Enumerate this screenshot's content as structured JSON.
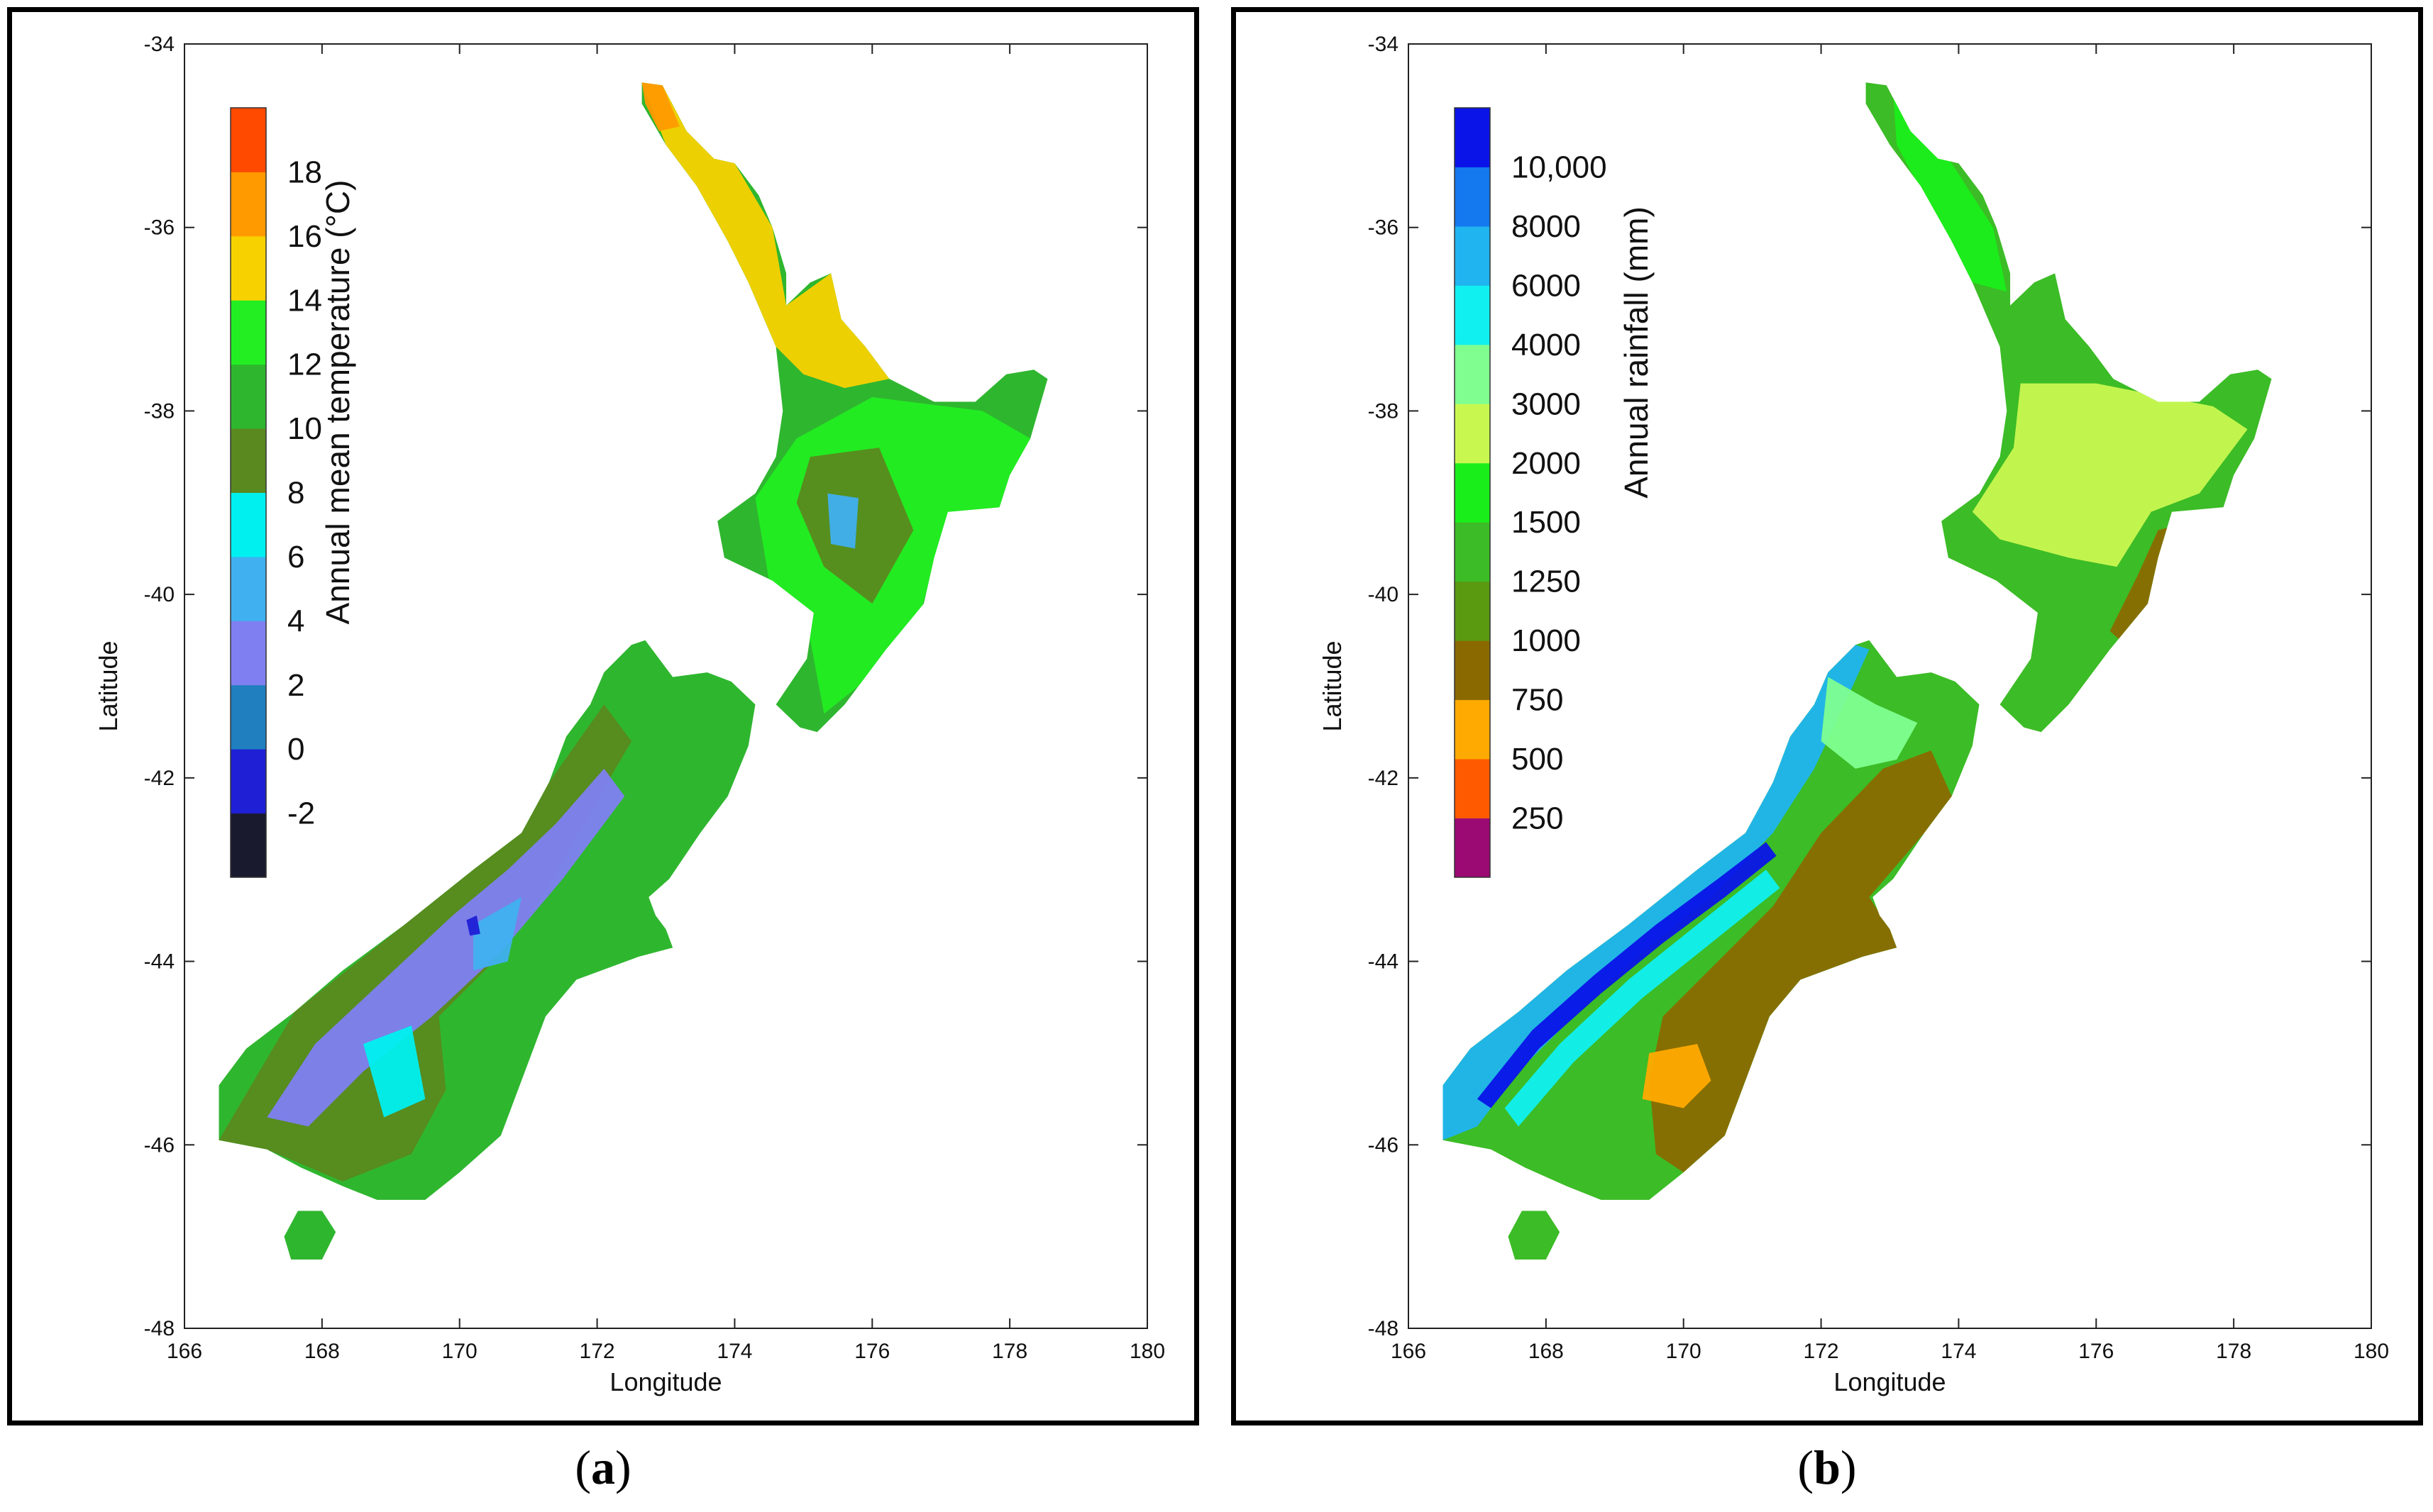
{
  "panels": [
    {
      "id": "a",
      "caption_letter": "a",
      "xlabel": "Longitude",
      "ylabel": "Latitude",
      "xticks": [
        "166",
        "168",
        "170",
        "172",
        "174",
        "176",
        "178",
        "180"
      ],
      "yticks": [
        "-34",
        "-36",
        "-38",
        "-40",
        "-42",
        "-44",
        "-46",
        "-48"
      ],
      "xlim": [
        166,
        180
      ],
      "ylim": [
        -48,
        -34
      ],
      "colorbar": {
        "title": "Annual mean temperature (°C)",
        "colors_bottom_to_top": [
          "#1a1a2e",
          "#1f1fd6",
          "#1f7fbf",
          "#7f7ff2",
          "#40b0f0",
          "#00f0f0",
          "#5a8a1f",
          "#2fb62f",
          "#22ee22",
          "#f8d200",
          "#ff9a00",
          "#ff4a00"
        ],
        "labels_bottom_to_top": [
          "-2",
          "0",
          "2",
          "4",
          "6",
          "8",
          "10",
          "12",
          "14",
          "16",
          "18"
        ]
      }
    },
    {
      "id": "b",
      "caption_letter": "b",
      "xlabel": "Longitude",
      "ylabel": "Latitude",
      "xticks": [
        "166",
        "168",
        "170",
        "172",
        "174",
        "176",
        "178",
        "180"
      ],
      "yticks": [
        "-34",
        "-36",
        "-38",
        "-40",
        "-42",
        "-44",
        "-46",
        "-48"
      ],
      "xlim": [
        166,
        180
      ],
      "ylim": [
        -48,
        -34
      ],
      "colorbar": {
        "title": "Annual rainfall (mm)",
        "colors_bottom_to_top": [
          "#9a0a72",
          "#ff5a00",
          "#ffaa00",
          "#8a6a00",
          "#5a9a10",
          "#3cbc26",
          "#1aee1a",
          "#c8f850",
          "#80ff90",
          "#10f0f0",
          "#20b4f0",
          "#1478ee",
          "#0a14e8"
        ],
        "labels_bottom_to_top": [
          "250",
          "500",
          "750",
          "1000",
          "1250",
          "1500",
          "2000",
          "3000",
          "4000",
          "6000",
          "8000",
          "10,000"
        ]
      }
    }
  ],
  "map_layers": {
    "a": {
      "base_color": "#2fb62f",
      "coast_north": "#f8d200",
      "coast_tip": "#ff9a00",
      "inland_mid": "#22ee22",
      "lowland": "#5a8a1f",
      "alpine_cold": "#7f7ff2",
      "alpine_cool": "#40b0f0",
      "alpine_cyan": "#00f0f0",
      "alpine_peak": "#1f1fd6"
    },
    "b": {
      "base_color": "#3cbc26",
      "north_moist": "#c8f850",
      "dry_east": "#8a6a00",
      "very_dry": "#ffaa00",
      "wet_west": "#20b4f0",
      "very_wet": "#0a14e8",
      "wet_cyan": "#10f0f0",
      "moist_green": "#80ff90",
      "lush": "#1aee1a"
    }
  }
}
